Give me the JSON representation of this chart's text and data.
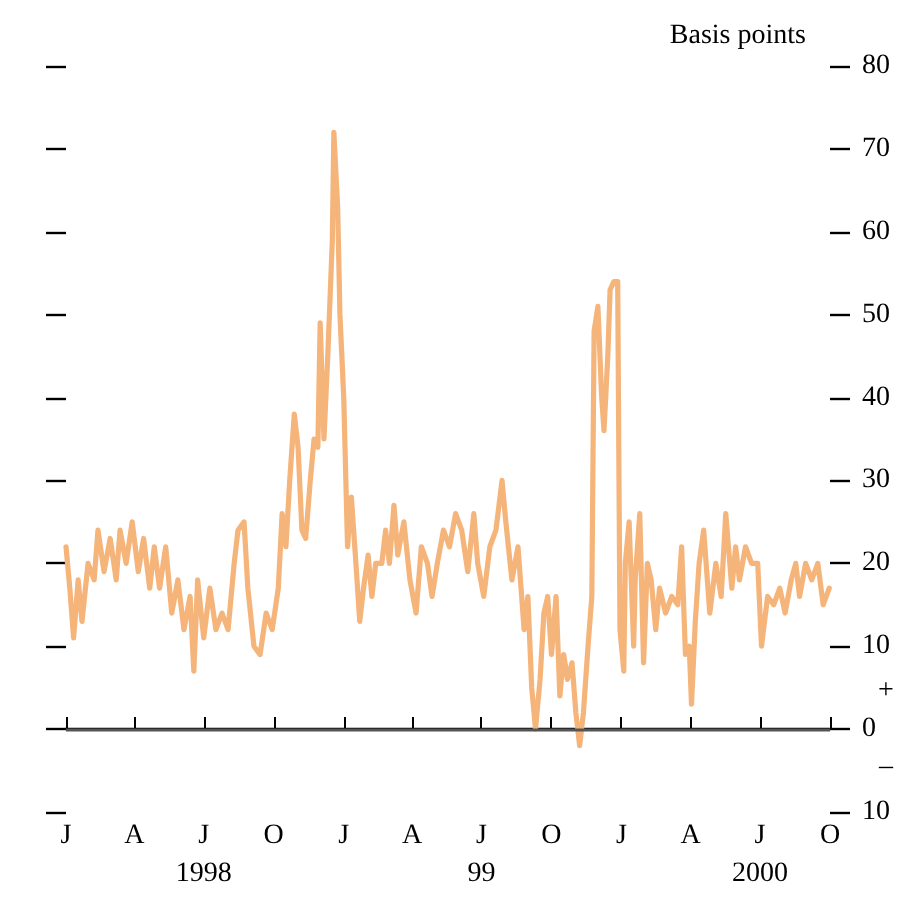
{
  "chart_data": {
    "type": "line",
    "ylabel": "Basis points",
    "annotations": [
      "+",
      "–",
      "J",
      "A",
      "J",
      "O",
      "J",
      "A",
      "J",
      "O",
      "J",
      "A",
      "J",
      "O"
    ],
    "xlim": [
      "1998-01-01",
      "2000-10-01"
    ],
    "xticks": [
      {
        "value": "1998-01-01",
        "label": null
      },
      {
        "value": "1998-04-01",
        "label": null
      },
      {
        "value": "1998-07-01",
        "label": "1998"
      },
      {
        "value": "1998-10-01",
        "label": null
      },
      {
        "value": "1999-01-01",
        "label": null
      },
      {
        "value": "1999-04-01",
        "label": null
      },
      {
        "value": "1999-07-01",
        "label": "99"
      },
      {
        "value": "1999-10-01",
        "label": null
      },
      {
        "value": "2000-01-01",
        "label": null
      },
      {
        "value": "2000-04-01",
        "label": null
      },
      {
        "value": "2000-07-01",
        "label": "2000"
      },
      {
        "value": "2000-10-01",
        "label": null
      }
    ],
    "ylim": [
      -10,
      80
    ],
    "yticks": [
      {
        "value": -10,
        "label": "10"
      },
      0,
      10,
      20,
      30,
      40,
      50,
      60,
      70,
      80
    ],
    "ref_lines": [
      {
        "axis": "y",
        "value": 0,
        "color": "#555555"
      }
    ],
    "grid": false,
    "marker": "none",
    "line_style": "solid",
    "x": [
      "1998-01-01",
      "1998-01-06",
      "1998-01-11",
      "1998-01-17",
      "1998-01-22",
      "1998-01-30",
      "1998-02-07",
      "1998-02-12",
      "1998-02-20",
      "1998-02-28",
      "1998-03-08",
      "1998-03-13",
      "1998-03-21",
      "1998-03-29",
      "1998-04-06",
      "1998-04-13",
      "1998-04-21",
      "1998-04-27",
      "1998-05-04",
      "1998-05-12",
      "1998-05-20",
      "1998-05-28",
      "1998-06-05",
      "1998-06-13",
      "1998-06-18",
      "1998-06-23",
      "1998-07-01",
      "1998-07-09",
      "1998-07-17",
      "1998-07-25",
      "1998-08-02",
      "1998-08-10",
      "1998-08-15",
      "1998-08-23",
      "1998-08-28",
      "1998-09-05",
      "1998-09-13",
      "1998-09-21",
      "1998-09-29",
      "1998-10-07",
      "1998-10-12",
      "1998-10-17",
      "1998-10-22",
      "1998-10-28",
      "1998-11-02",
      "1998-11-07",
      "1998-11-12",
      "1998-11-18",
      "1998-11-23",
      "1998-11-28",
      "1998-12-01",
      "1998-12-06",
      "1998-12-11",
      "1998-12-17",
      "1998-12-19",
      "1998-12-24",
      "1998-12-27",
      "1999-01-01",
      "1999-01-06",
      "1999-01-11",
      "1999-01-17",
      "1999-01-22",
      "1999-01-27",
      "1999-02-02",
      "1999-02-07",
      "1999-02-12",
      "1999-02-20",
      "1999-02-25",
      "1999-03-02",
      "1999-03-08",
      "1999-03-13",
      "1999-03-21",
      "1999-03-29",
      "1999-04-06",
      "1999-04-13",
      "1999-04-21",
      "1999-04-27",
      "1999-05-04",
      "1999-05-12",
      "1999-05-20",
      "1999-05-28",
      "1999-06-05",
      "1999-06-13",
      "1999-06-21",
      "1999-06-26",
      "1999-07-04",
      "1999-07-12",
      "1999-07-20",
      "1999-07-28",
      "1999-08-02",
      "1999-08-10",
      "1999-08-18",
      "1999-08-26",
      "1999-08-31",
      "1999-09-05",
      "1999-09-10",
      "1999-09-16",
      "1999-09-21",
      "1999-09-26",
      "1999-10-01",
      "1999-10-07",
      "1999-10-12",
      "1999-10-17",
      "1999-10-22",
      "1999-10-28",
      "1999-11-02",
      "1999-11-07",
      "1999-11-12",
      "1999-11-18",
      "1999-11-23",
      "1999-11-26",
      "1999-12-01",
      "1999-12-06",
      "1999-12-09",
      "1999-12-14",
      "1999-12-17",
      "1999-12-22",
      "1999-12-27",
      "1999-12-30",
      "2000-01-04",
      "2000-01-06",
      "2000-01-11",
      "2000-01-17",
      "2000-01-19",
      "2000-01-25",
      "2000-01-30",
      "2000-02-04",
      "2000-02-09",
      "2000-02-15",
      "2000-02-20",
      "2000-02-28",
      "2000-03-07",
      "2000-03-15",
      "2000-03-20",
      "2000-03-25",
      "2000-03-30",
      "2000-04-02",
      "2000-04-07",
      "2000-04-12",
      "2000-04-18",
      "2000-04-26",
      "2000-05-04",
      "2000-05-11",
      "2000-05-17",
      "2000-05-25",
      "2000-05-30",
      "2000-06-04",
      "2000-06-12",
      "2000-06-20",
      "2000-06-28",
      "2000-07-03",
      "2000-07-11",
      "2000-07-19",
      "2000-07-27",
      "2000-08-03",
      "2000-08-11",
      "2000-08-17",
      "2000-08-22",
      "2000-08-30",
      "2000-09-07",
      "2000-09-15",
      "2000-09-22",
      "2000-09-30"
    ],
    "series": [
      {
        "color": "#f5b47a",
        "values": [
          22,
          17,
          11,
          18,
          13,
          20,
          18,
          24,
          19,
          23,
          18,
          24,
          20,
          25,
          19,
          23,
          17,
          22,
          17,
          22,
          14,
          18,
          12,
          16,
          7,
          18,
          11,
          17,
          12,
          14,
          12,
          20,
          24,
          25,
          17,
          10,
          9,
          14,
          12,
          17,
          26,
          22,
          30,
          38,
          34,
          24,
          23,
          30,
          35,
          34,
          49,
          35,
          45,
          59,
          72,
          63,
          50,
          40,
          22,
          28,
          20,
          13,
          17,
          21,
          16,
          20,
          20,
          24,
          20,
          27,
          21,
          25,
          18,
          14,
          22,
          20,
          16,
          20,
          24,
          22,
          26,
          24,
          19,
          26,
          20,
          16,
          22,
          24,
          30,
          25,
          18,
          22,
          12,
          16,
          5,
          0,
          6,
          14,
          16,
          9,
          16,
          4,
          9,
          6,
          8,
          2,
          -2,
          2,
          10,
          16,
          48,
          51,
          40,
          36,
          45,
          53,
          54,
          54,
          12,
          7,
          20,
          25,
          10,
          18,
          26,
          8,
          20,
          18,
          12,
          17,
          14,
          16,
          15,
          22,
          9,
          10,
          3,
          13,
          20,
          24,
          14,
          20,
          16,
          26,
          17,
          22,
          18,
          22,
          20,
          20,
          10,
          16,
          15,
          17,
          14,
          18,
          20,
          16,
          20,
          18,
          20,
          15,
          17
        ]
      }
    ]
  }
}
